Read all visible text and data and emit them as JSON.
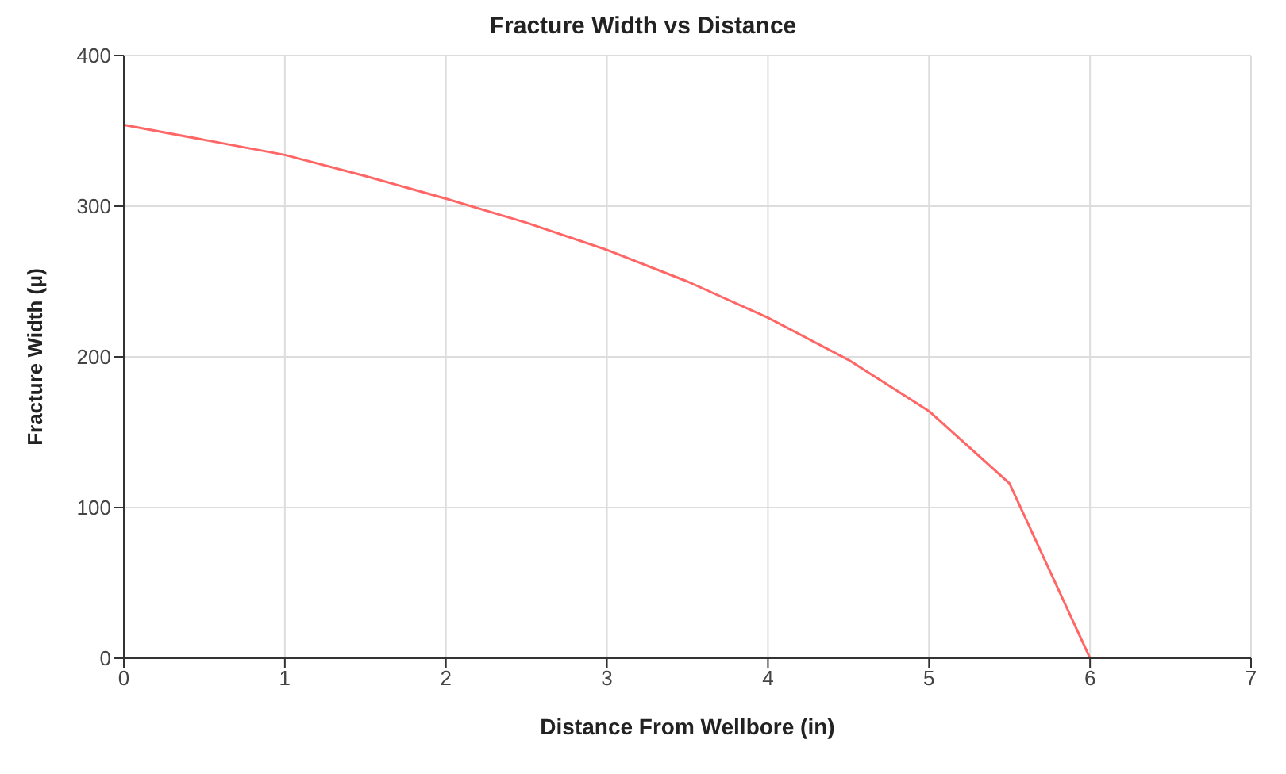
{
  "chart_data": {
    "type": "line",
    "title": "Fracture Width vs Distance",
    "xlabel": "Distance From Wellbore (in)",
    "ylabel": "Fracture Width (μ)",
    "x": [
      0,
      0.5,
      1,
      1.5,
      2,
      2.5,
      3,
      3.5,
      4,
      4.5,
      5,
      5.5,
      6
    ],
    "series": [
      {
        "color": "#ff6666",
        "values": [
          354,
          344,
          334,
          320,
          305,
          289,
          271,
          250,
          226,
          198,
          164,
          116,
          0
        ]
      }
    ],
    "xlim": [
      0,
      7
    ],
    "xticks": [
      0,
      1,
      2,
      3,
      4,
      5,
      6,
      7
    ],
    "ylim": [
      0,
      400
    ],
    "yticks": [
      0,
      100,
      200,
      300,
      400
    ],
    "grid": true,
    "legend": false,
    "marker": "none",
    "line_style": "solid"
  }
}
